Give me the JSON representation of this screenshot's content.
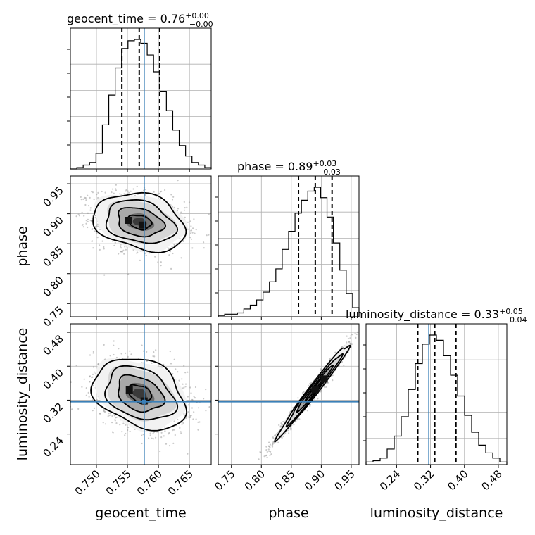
{
  "chart_data": {
    "type": "scatter",
    "variables": [
      "geocent_time",
      "phase",
      "luminosity_distance"
    ],
    "ranges": {
      "geocent_time": [
        0.7458,
        0.7685
      ],
      "phase": [
        0.728,
        0.963
      ],
      "luminosity_distance": [
        0.168,
        0.5
      ]
    },
    "truths": {
      "geocent_time": 0.7577,
      "phase": null,
      "luminosity_distance": 0.316
    },
    "ticks": {
      "geocent_time": [
        0.75,
        0.755,
        0.76,
        0.765
      ],
      "phase": [
        0.75,
        0.8,
        0.85,
        0.9,
        0.95
      ],
      "luminosity_distance": [
        0.24,
        0.32,
        0.4,
        0.48
      ]
    },
    "tick_labels": {
      "geocent_time": [
        "0.750",
        "0.755",
        "0.760",
        "0.765"
      ],
      "phase": [
        "0.75",
        "0.80",
        "0.85",
        "0.90",
        "0.95"
      ],
      "luminosity_distance": [
        "0.24",
        "0.32",
        "0.40",
        "0.48"
      ]
    },
    "axis_labels": {
      "geocent_time": "geocent_time",
      "phase": "phase",
      "luminosity_distance": "luminosity_distance"
    },
    "titles": [
      {
        "name": "geocent_time",
        "text": "geocent_time = 0.76",
        "plus": "+0.00",
        "minus": "−0.00"
      },
      {
        "name": "phase",
        "text": "phase = 0.89",
        "plus": "+0.03",
        "minus": "−0.03"
      },
      {
        "name": "luminosity_distance",
        "text": "luminosity_distance = 0.33",
        "plus": "+0.05",
        "minus": "−0.04"
      }
    ],
    "quantiles": {
      "geocent_time": [
        0.7541,
        0.7569,
        0.7602
      ],
      "phase": [
        0.862,
        0.89,
        0.918
      ],
      "luminosity_distance": [
        0.29,
        0.33,
        0.38
      ]
    },
    "histograms": {
      "geocent_time": [
        0,
        0.01,
        0.03,
        0.05,
        0.12,
        0.34,
        0.57,
        0.78,
        0.93,
        0.99,
        1.0,
        0.97,
        0.88,
        0.75,
        0.6,
        0.45,
        0.3,
        0.18,
        0.1,
        0.05,
        0.03,
        0.01
      ],
      "phase": [
        0.01,
        0.02,
        0.02,
        0.03,
        0.06,
        0.09,
        0.13,
        0.19,
        0.27,
        0.37,
        0.52,
        0.66,
        0.8,
        0.9,
        0.97,
        1.0,
        0.92,
        0.77,
        0.57,
        0.36,
        0.18,
        0.07
      ],
      "luminosity_distance": [
        0.02,
        0.03,
        0.05,
        0.12,
        0.22,
        0.37,
        0.58,
        0.78,
        0.93,
        1.0,
        0.96,
        0.84,
        0.69,
        0.53,
        0.38,
        0.25,
        0.15,
        0.09,
        0.05,
        0.02
      ]
    },
    "pairs": [
      {
        "x": "geocent_time",
        "y": "phase",
        "center": [
          0.757,
          0.886
        ],
        "sigma": [
          0.0037,
          0.024
        ],
        "rho": -0.25,
        "levels": [
          0.5,
          1.0,
          1.5,
          2.0
        ],
        "peaks": [
          [
            0.7552,
            0.889
          ],
          [
            0.7574,
            0.881
          ]
        ]
      },
      {
        "x": "geocent_time",
        "y": "luminosity_distance",
        "center": [
          0.757,
          0.335
        ],
        "sigma": [
          0.0037,
          0.042
        ],
        "rho": -0.3,
        "levels": [
          0.5,
          1.0,
          1.5,
          2.0
        ],
        "peaks": [
          [
            0.7553,
            0.344
          ],
          [
            0.7577,
            0.318
          ]
        ]
      },
      {
        "x": "phase",
        "y": "luminosity_distance",
        "center": [
          0.888,
          0.345
        ],
        "sigma": [
          0.03,
          0.055
        ],
        "rho": 0.985,
        "levels": [
          0.5,
          1.0,
          1.5,
          2.0
        ],
        "peaks": [
          [
            0.89,
            0.345
          ],
          [
            0.905,
            0.37
          ]
        ]
      }
    ],
    "grid": true
  }
}
